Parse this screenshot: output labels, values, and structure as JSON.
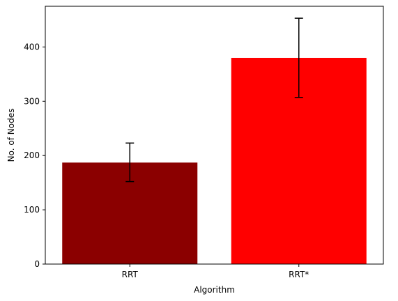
{
  "chart_data": {
    "type": "bar",
    "xlabel": "Algorithm",
    "ylabel": "No. of Nodes",
    "categories": [
      "RRT",
      "RRT*"
    ],
    "values": [
      187,
      380
    ],
    "error_low": [
      152,
      307
    ],
    "error_high": [
      223,
      453
    ],
    "colors": [
      "#8b0000",
      "#ff0000"
    ],
    "ylim": [
      0,
      475
    ],
    "yticks": [
      0,
      100,
      200,
      300,
      400
    ],
    "grid": false,
    "legend": "none"
  }
}
